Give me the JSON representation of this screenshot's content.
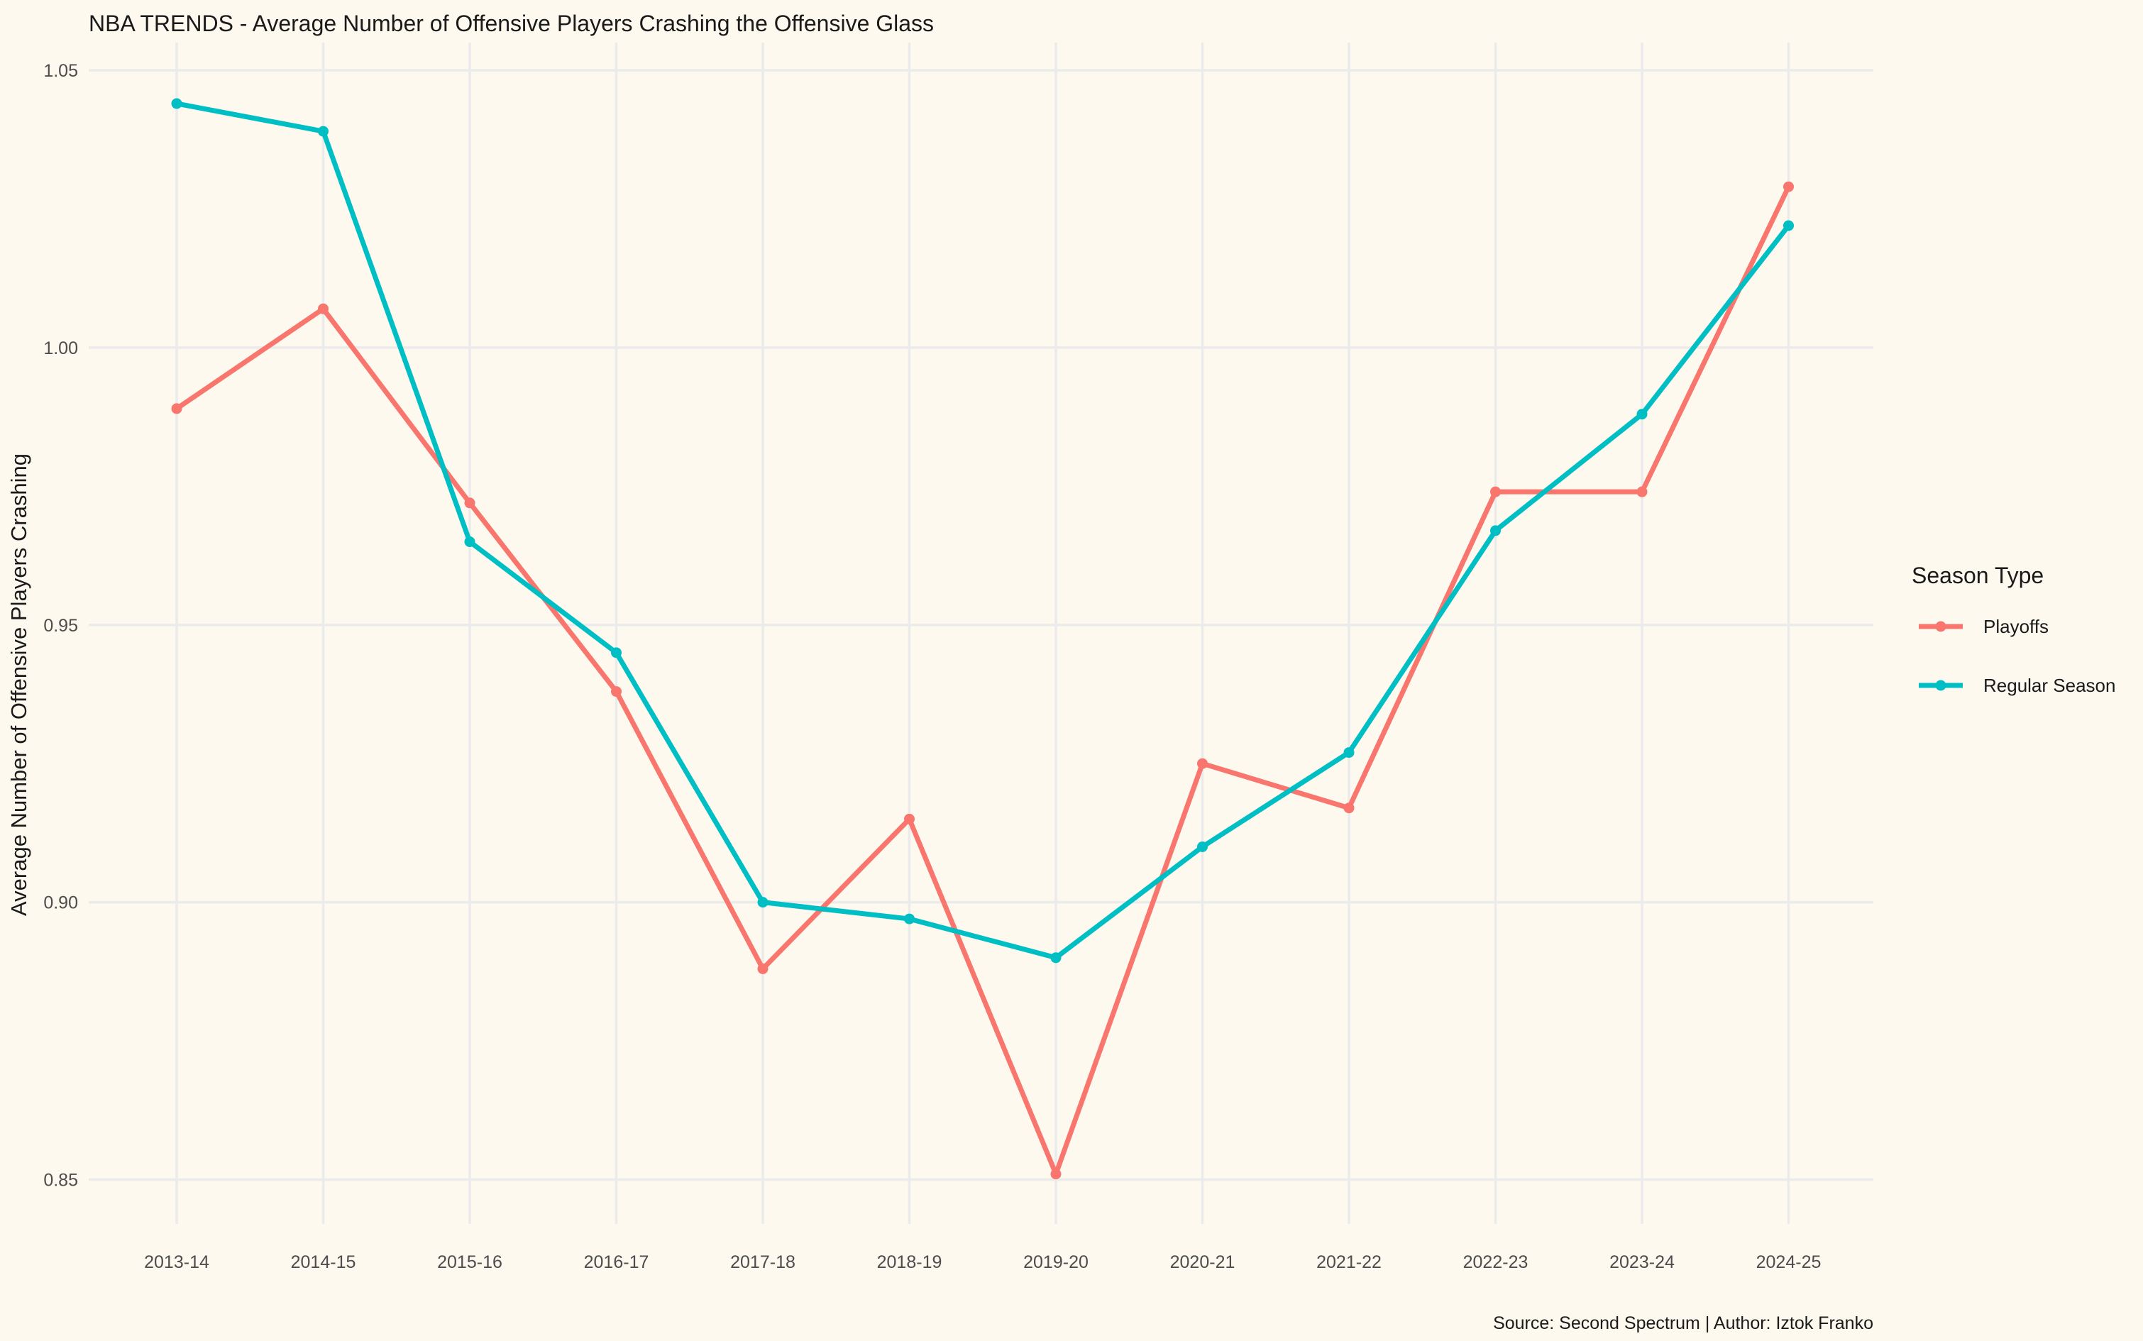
{
  "chart_data": {
    "type": "line",
    "title": "NBA TRENDS - Average Number of Offensive Players Crashing the Offensive Glass",
    "xlabel": "",
    "ylabel": "Average Number of Offensive Players Crashing",
    "caption": "Source: Second Spectrum | Author: Iztok Franko",
    "categories": [
      "2013-14",
      "2014-15",
      "2015-16",
      "2016-17",
      "2017-18",
      "2018-19",
      "2019-20",
      "2020-21",
      "2021-22",
      "2022-23",
      "2023-24",
      "2024-25"
    ],
    "ylim": [
      0.842,
      1.055
    ],
    "yticks": [
      0.85,
      0.9,
      0.95,
      1.0,
      1.05
    ],
    "ytick_labels": [
      "0.85",
      "0.90",
      "0.95",
      "1.00",
      "1.05"
    ],
    "grid": true,
    "legend": {
      "title": "Season Type",
      "position": "right"
    },
    "series": [
      {
        "name": "Playoffs",
        "color": "#F8766D",
        "values": [
          0.989,
          1.007,
          0.972,
          0.938,
          0.888,
          0.915,
          0.851,
          0.925,
          0.917,
          0.974,
          0.974,
          1.029
        ]
      },
      {
        "name": "Regular Season",
        "color": "#00BFC4",
        "values": [
          1.044,
          1.039,
          0.965,
          0.945,
          0.9,
          0.897,
          0.89,
          0.91,
          0.927,
          0.967,
          0.988,
          1.022
        ]
      }
    ]
  }
}
